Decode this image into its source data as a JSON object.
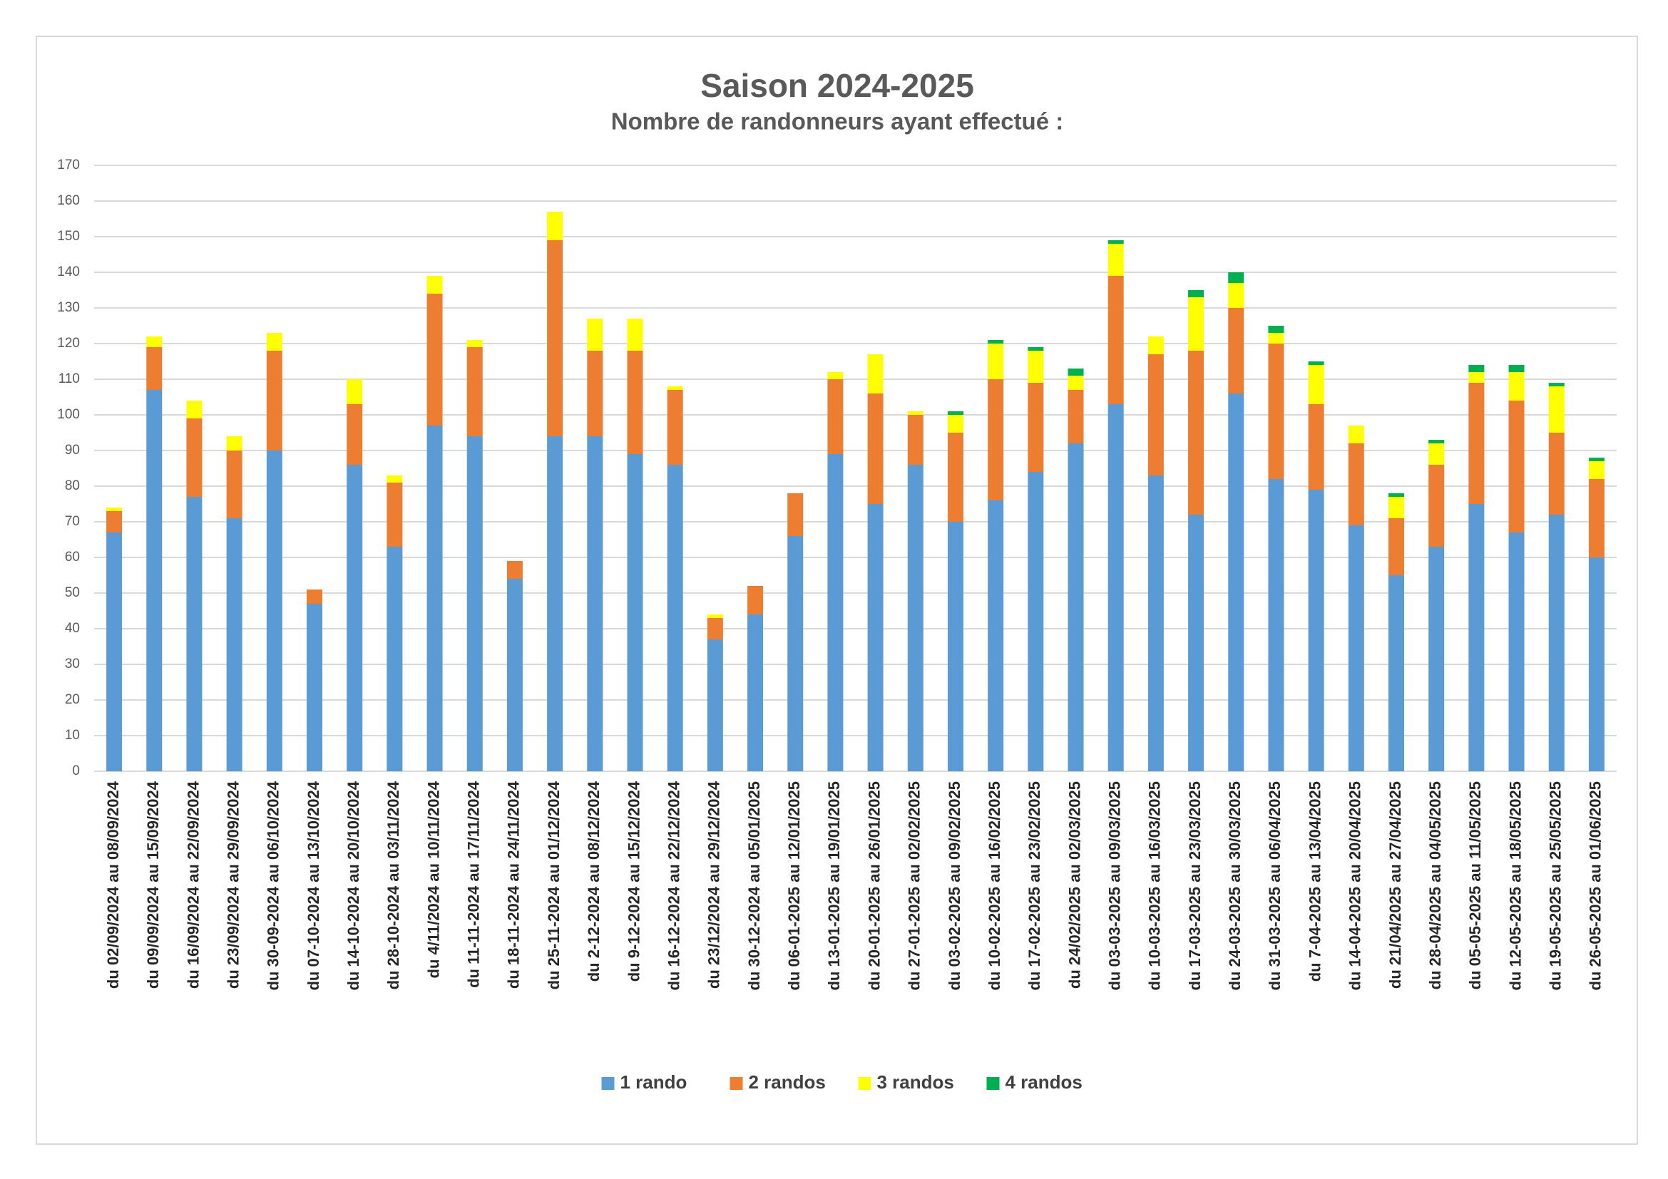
{
  "chart_data": {
    "type": "bar",
    "stacked": true,
    "title": "Saison 2024-2025",
    "subtitle": "Nombre de randonneurs ayant effectué :",
    "xlabel": "",
    "ylabel": "",
    "ylim": [
      0,
      170
    ],
    "y_ticks": [
      0,
      10,
      20,
      30,
      40,
      50,
      60,
      70,
      80,
      90,
      100,
      110,
      120,
      130,
      140,
      150,
      160,
      170
    ],
    "grid": true,
    "legend_position": "bottom",
    "categories": [
      "du 02/09/2024 au 08/09/2024",
      "du 09/09/2024 au 15/09/2024",
      "du 16/09/2024 au 22/09/2024",
      "du 23/09/2024 au 29/09/2024",
      "du 30-09-2024 au 06/10/2024",
      "du 07-10-2024 au 13/10/2024",
      "du 14-10-2024 au 20/10/2024",
      "du 28-10-2024 au 03/11/2024",
      "du 4/11/2024 au 10/11/2024",
      "du 11-11-2024 au 17/11/2024",
      "du 18-11-2024 au 24/11/2024",
      "du 25-11-2024 au 01/12/2024",
      "du 2-12-2024 au 08/12/2024",
      "du 9-12-2024 au 15/12/2024",
      "du 16-12-2024 au 22/12/2024",
      "du 23/12/2024 au 29/12/2024",
      "du 30-12-2024 au 05/01/2025",
      "du 06-01-2025 au 12/01/2025",
      "du 13-01-2025 au 19/01/2025",
      "du 20-01-2025 au 26/01/2025",
      "du 27-01-2025 au 02/02/2025",
      "du 03-02-2025 au 09/02/2025",
      "du 10-02-2025 au 16/02/2025",
      "du 17-02-2025 au 23/02/2025",
      "du 24/02/2025 au 02/03/2025",
      "du 03-03-2025 au 09/03/2025",
      "du 10-03-2025 au 16/03/2025",
      "du 17-03-2025 au 23/03/2025",
      "du 24-03-2025 au 30/03/2025",
      "du 31-03-2025 au 06/04/2025",
      "du 7-04-2025 au 13/04/2025",
      "du 14-04-2025 au 20/04/2025",
      "du 21/04/2025 au 27/04/2025",
      "du 28-04/2025 au 04/05/2025",
      "du 05-05-2025 au 11/05/2025",
      "du 12-05-2025 au 18/05/2025",
      "du 19-05-2025 au 25/05/2025",
      "du 26-05-2025 au 01/06/2025"
    ],
    "series": [
      {
        "name": "1 rando",
        "color": "#5b9bd5",
        "values": [
          67,
          107,
          77,
          71,
          90,
          47,
          86,
          63,
          97,
          94,
          54,
          94,
          94,
          89,
          86,
          37,
          44,
          66,
          89,
          75,
          86,
          70,
          76,
          84,
          92,
          103,
          83,
          72,
          106,
          82,
          79,
          69,
          55,
          63,
          75,
          67,
          72,
          60
        ]
      },
      {
        "name": "2 randos",
        "color": "#ed7d31",
        "values": [
          6,
          12,
          22,
          19,
          28,
          4,
          17,
          18,
          37,
          25,
          5,
          55,
          24,
          29,
          21,
          6,
          8,
          12,
          21,
          31,
          14,
          25,
          34,
          25,
          15,
          36,
          34,
          46,
          24,
          38,
          24,
          23,
          16,
          23,
          34,
          37,
          23,
          22
        ]
      },
      {
        "name": "3 randos",
        "color": "#ffff00",
        "values": [
          1,
          3,
          5,
          4,
          5,
          0,
          7,
          2,
          5,
          2,
          0,
          8,
          9,
          9,
          1,
          1,
          0,
          0,
          2,
          11,
          1,
          5,
          10,
          9,
          4,
          9,
          5,
          15,
          7,
          3,
          11,
          5,
          6,
          6,
          3,
          8,
          13,
          5
        ]
      },
      {
        "name": "4 randos",
        "color": "#00b050",
        "values": [
          0,
          0,
          0,
          0,
          0,
          0,
          0,
          0,
          0,
          0,
          0,
          0,
          0,
          0,
          0,
          0,
          0,
          0,
          0,
          0,
          0,
          1,
          1,
          1,
          2,
          1,
          0,
          2,
          3,
          2,
          1,
          0,
          1,
          1,
          2,
          2,
          1,
          1
        ]
      }
    ]
  }
}
